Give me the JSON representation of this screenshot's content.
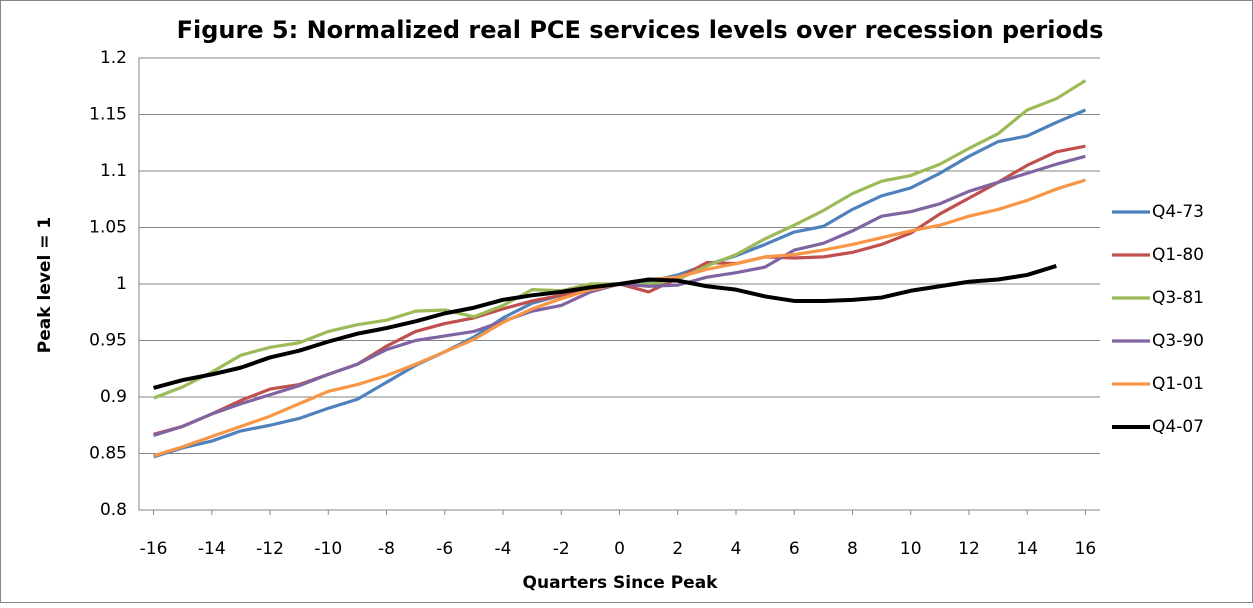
{
  "chart_data": {
    "type": "line",
    "title": "Figure 5: Normalized real PCE services levels over recession periods",
    "x_label": "Quarters Since Peak",
    "y_label": "Peak level = 1",
    "x": [
      -16,
      -15,
      -14,
      -13,
      -12,
      -11,
      -10,
      -9,
      -8,
      -7,
      -6,
      -5,
      -4,
      -3,
      -2,
      -1,
      0,
      1,
      2,
      3,
      4,
      5,
      6,
      7,
      8,
      9,
      10,
      11,
      12,
      13,
      14,
      15,
      16
    ],
    "xlim": [
      -16.5,
      16.5
    ],
    "xticks": [
      -16,
      -14,
      -12,
      -10,
      -8,
      -6,
      -4,
      -2,
      0,
      2,
      4,
      6,
      8,
      10,
      12,
      14,
      16
    ],
    "ylim": [
      0.8,
      1.2
    ],
    "yticks": [
      0.8,
      0.85,
      0.9,
      0.95,
      1,
      1.05,
      1.1,
      1.15,
      1.2
    ],
    "grid": true,
    "legend": "right",
    "series": [
      {
        "name": "Q4-73",
        "color": "#4f81bd",
        "values": [
          0.847,
          0.855,
          0.861,
          0.87,
          0.875,
          0.881,
          0.89,
          0.898,
          0.913,
          0.928,
          0.94,
          0.953,
          0.97,
          0.983,
          0.99,
          0.996,
          1.0,
          1.002,
          1.008,
          1.017,
          1.025,
          1.035,
          1.046,
          1.051,
          1.066,
          1.078,
          1.085,
          1.098,
          1.113,
          1.126,
          1.131,
          1.143,
          1.154
        ]
      },
      {
        "name": "Q1-80",
        "color": "#c0504d",
        "values": [
          0.867,
          0.874,
          0.885,
          0.897,
          0.907,
          0.911,
          0.92,
          0.929,
          0.945,
          0.958,
          0.965,
          0.97,
          0.978,
          0.985,
          0.99,
          0.995,
          1.0,
          0.993,
          1.005,
          1.019,
          1.018,
          1.024,
          1.023,
          1.024,
          1.028,
          1.035,
          1.045,
          1.062,
          1.076,
          1.09,
          1.105,
          1.117,
          1.122
        ]
      },
      {
        "name": "Q3-81",
        "color": "#9bbb59",
        "values": [
          0.899,
          0.909,
          0.922,
          0.937,
          0.944,
          0.948,
          0.958,
          0.964,
          0.968,
          0.976,
          0.977,
          0.971,
          0.981,
          0.995,
          0.994,
          1.0,
          1.0,
          1.0,
          1.004,
          1.016,
          1.026,
          1.04,
          1.052,
          1.065,
          1.08,
          1.091,
          1.096,
          1.106,
          1.12,
          1.133,
          1.154,
          1.164,
          1.18
        ]
      },
      {
        "name": "Q3-90",
        "color": "#8064a2",
        "values": [
          0.866,
          0.874,
          0.885,
          0.894,
          0.902,
          0.91,
          0.92,
          0.929,
          0.942,
          0.95,
          0.954,
          0.958,
          0.967,
          0.976,
          0.981,
          0.993,
          1.0,
          0.998,
          0.999,
          1.006,
          1.01,
          1.015,
          1.03,
          1.036,
          1.047,
          1.06,
          1.064,
          1.071,
          1.082,
          1.09,
          1.098,
          1.106,
          1.113
        ]
      },
      {
        "name": "Q1-01",
        "color": "#f79646",
        "values": [
          0.848,
          0.856,
          0.865,
          0.874,
          0.883,
          0.894,
          0.905,
          0.911,
          0.919,
          0.929,
          0.94,
          0.951,
          0.966,
          0.978,
          0.987,
          0.995,
          1.0,
          1.004,
          1.006,
          1.013,
          1.018,
          1.024,
          1.026,
          1.03,
          1.035,
          1.041,
          1.047,
          1.052,
          1.06,
          1.066,
          1.074,
          1.084,
          1.092
        ]
      },
      {
        "name": "Q4-07",
        "color": "#000000",
        "values": [
          0.908,
          0.915,
          0.92,
          0.926,
          0.935,
          0.941,
          0.949,
          0.956,
          0.961,
          0.967,
          0.974,
          0.979,
          0.986,
          0.99,
          0.993,
          0.997,
          1.0,
          1.004,
          1.003,
          0.998,
          0.995,
          0.989,
          0.985,
          0.985,
          0.986,
          0.988,
          0.994,
          0.998,
          1.002,
          1.004,
          1.008,
          1.016,
          null
        ]
      }
    ]
  }
}
